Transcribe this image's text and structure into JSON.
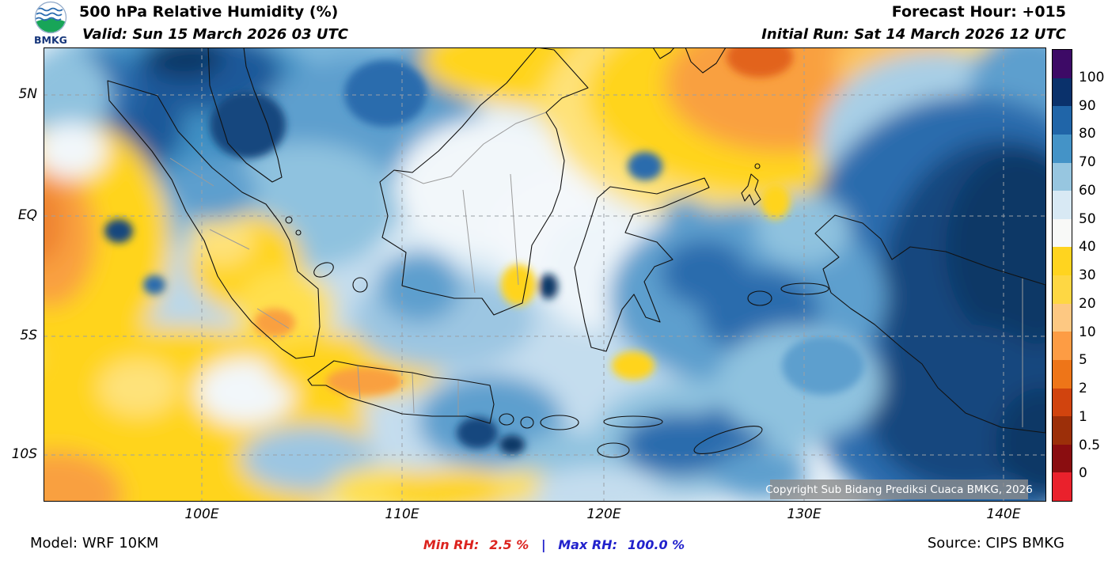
{
  "header": {
    "logo": "BMKG",
    "title": "500 hPa Relative Humidity (%)",
    "valid": "Valid: Sun 15 March 2026 03 UTC",
    "forecast_hour": "Forecast Hour: +015",
    "initial_run": "Initial Run: Sat 14 March 2026 12 UTC"
  },
  "map": {
    "x_ticks": [
      "100E",
      "110E",
      "120E",
      "130E",
      "140E"
    ],
    "y_ticks": [
      "5N",
      "EQ",
      "5S",
      "10S"
    ],
    "copyright": "Copyright Sub Bidang Prediksi Cuaca BMKG, 2026"
  },
  "colorbar": {
    "ticks": [
      "100",
      "90",
      "80",
      "70",
      "60",
      "50",
      "40",
      "30",
      "20",
      "10",
      "5",
      "2",
      "1",
      "0.5",
      "0"
    ],
    "colors": [
      "#3d0a66",
      "#0a316b",
      "#2065a8",
      "#4493c7",
      "#97c6e0",
      "#d8e9f4",
      "#f8f9f7",
      "#ffd41f",
      "#fed743",
      "#fdc882",
      "#fd9c44",
      "#ee7518",
      "#d1440e",
      "#9c2f09",
      "#8a0d10",
      "#ea212c"
    ]
  },
  "footer": {
    "model": "Model: WRF 10KM",
    "min_label": "Min RH:",
    "min_value": "2.5 %",
    "separator": "|",
    "max_label": "Max RH:",
    "max_value": "100.0 %",
    "source": "Source: CIPS BMKG",
    "min_color": "#dc241f",
    "max_color": "#2222cc"
  }
}
